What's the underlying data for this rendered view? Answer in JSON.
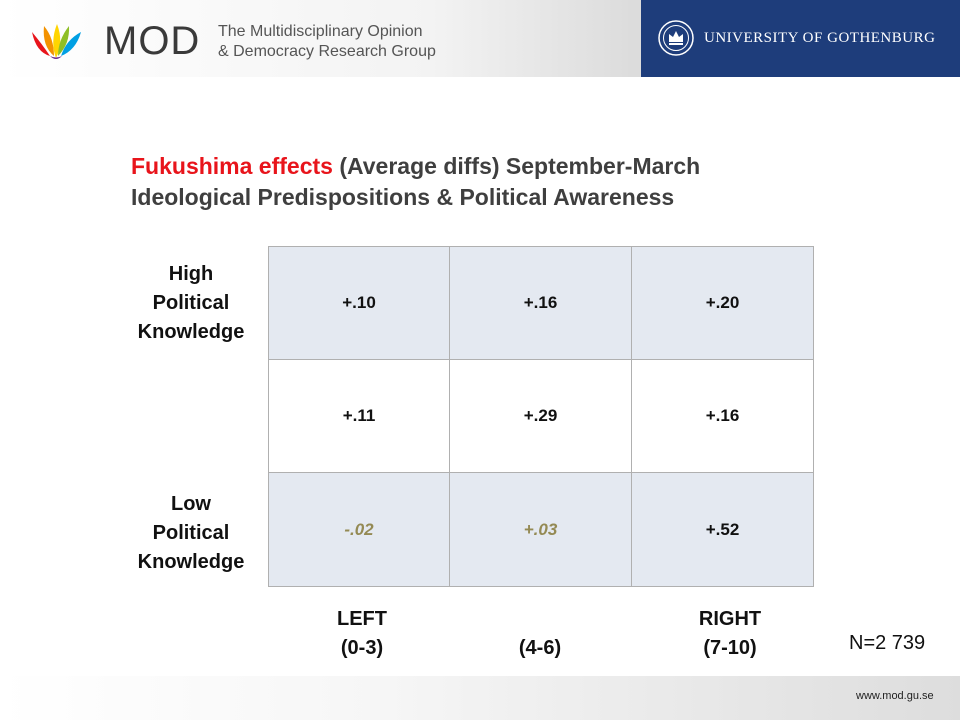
{
  "header": {
    "brand": "MOD",
    "subtitle_line1": "The Multidisciplinary Opinion",
    "subtitle_line2": "& Democracy Research Group",
    "university": "UNIVERSITY OF GOTHENBURG",
    "brand_colors": [
      "#e8141b",
      "#f39200",
      "#ffd500",
      "#8fbf26",
      "#009fe3",
      "#6b2c91"
    ],
    "university_color": "#1e3d7b"
  },
  "title": {
    "highlight": "Fukushima effects",
    "rest_line1": " (Average diffs) September-March",
    "line2": "Ideological Predispositions & Political Awareness",
    "highlight_color": "#e8141b"
  },
  "rows": {
    "high_label": [
      "High",
      "Political",
      "Knowledge"
    ],
    "low_label": [
      "Low",
      "Political",
      "Knowledge"
    ]
  },
  "table": {
    "rows": [
      [
        "+.10",
        "+.16",
        "+.20"
      ],
      [
        "+.11",
        "+.29",
        "+.16"
      ],
      [
        "-.02",
        "+.03",
        "+.52"
      ]
    ],
    "muted_cells": [
      "-.02",
      "+.03"
    ]
  },
  "columns": {
    "left": [
      "LEFT",
      "(0-3)"
    ],
    "middle": "(4-6)",
    "right": [
      "RIGHT",
      "(7-10)"
    ]
  },
  "n_label": "N=2 739",
  "footer": {
    "url": "www.mod.gu.se"
  }
}
